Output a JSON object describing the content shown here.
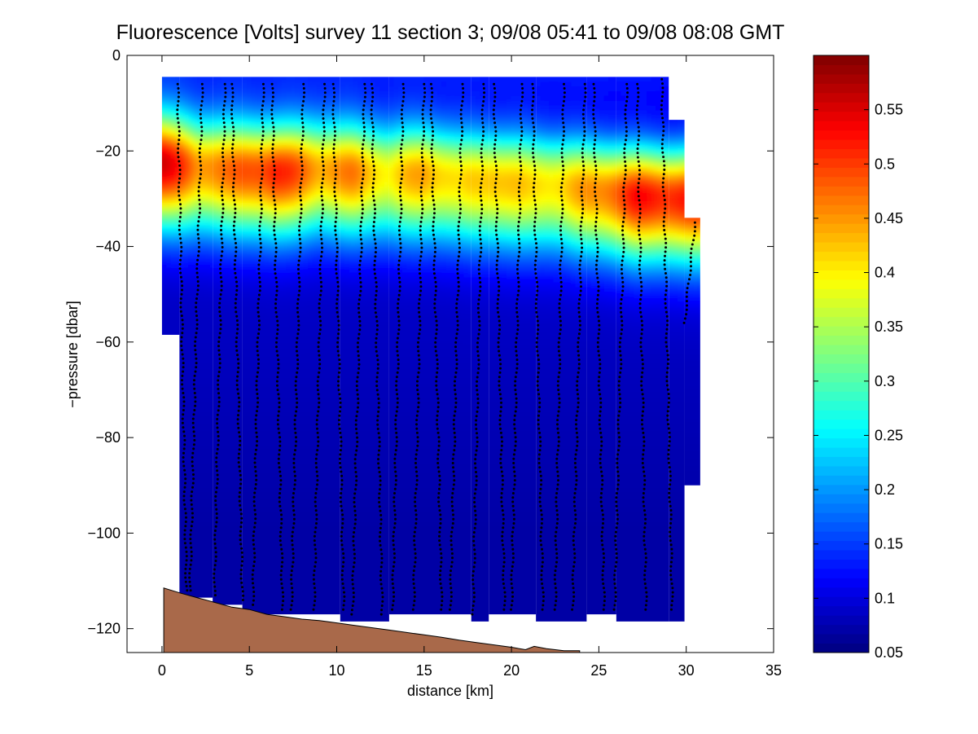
{
  "chart_data": {
    "type": "heatmap",
    "title": "Fluorescence [Volts] survey 11 section 3; 09/08 05:41 to 09/08 08:08 GMT",
    "xlabel": "distance [km]",
    "ylabel": "−pressure [dbar]",
    "xlim": [
      -2,
      35
    ],
    "ylim": [
      -125,
      0
    ],
    "x_ticks": [
      0,
      5,
      10,
      15,
      20,
      25,
      30,
      35
    ],
    "y_ticks": [
      0,
      -20,
      -40,
      -60,
      -80,
      -100,
      -120
    ],
    "x_tick_labels": [
      "0",
      "5",
      "10",
      "15",
      "20",
      "25",
      "30",
      "35"
    ],
    "y_tick_labels": [
      "0",
      "−20",
      "−40",
      "−60",
      "−80",
      "−100",
      "−120"
    ],
    "grid": false,
    "colormap": "jet",
    "colorbar": {
      "clim": [
        0.05,
        0.6
      ],
      "ticks": [
        0.05,
        0.1,
        0.15,
        0.2,
        0.25,
        0.3,
        0.35,
        0.4,
        0.45,
        0.5,
        0.55
      ],
      "tick_labels": [
        "0.05",
        "0.1",
        "0.15",
        "0.2",
        "0.25",
        "0.3",
        "0.35",
        "0.4",
        "0.45",
        "0.5",
        "0.55"
      ],
      "placement": "right"
    },
    "field": {
      "background_value": 0.085,
      "deep_value": 0.07,
      "surface_value": 0.16,
      "chlorophyll_max": [
        {
          "x": 0.0,
          "depth": -22.5,
          "value": 0.56
        },
        {
          "x": 2.0,
          "depth": -23.5,
          "value": 0.46
        },
        {
          "x": 4.0,
          "depth": -24.0,
          "value": 0.47
        },
        {
          "x": 6.5,
          "depth": -24.5,
          "value": 0.52
        },
        {
          "x": 9.0,
          "depth": -24.0,
          "value": 0.45
        },
        {
          "x": 11.0,
          "depth": -24.5,
          "value": 0.46
        },
        {
          "x": 13.0,
          "depth": -25.0,
          "value": 0.4
        },
        {
          "x": 15.0,
          "depth": -25.0,
          "value": 0.45
        },
        {
          "x": 17.0,
          "depth": -26.0,
          "value": 0.4
        },
        {
          "x": 19.0,
          "depth": -26.5,
          "value": 0.44
        },
        {
          "x": 21.0,
          "depth": -27.0,
          "value": 0.41
        },
        {
          "x": 23.0,
          "depth": -27.5,
          "value": 0.42
        },
        {
          "x": 25.0,
          "depth": -28.5,
          "value": 0.46
        },
        {
          "x": 27.0,
          "depth": -29.5,
          "value": 0.52
        },
        {
          "x": 29.5,
          "depth": -30.0,
          "value": 0.52
        }
      ],
      "coverage": [
        {
          "x0": 0.0,
          "x1": 1.0,
          "top": -4.5,
          "bottom": -58.5
        },
        {
          "x0": 1.0,
          "x1": 2.9,
          "top": -4.5,
          "bottom": -113.5
        },
        {
          "x0": 2.9,
          "x1": 4.6,
          "top": -4.5,
          "bottom": -115.0
        },
        {
          "x0": 4.6,
          "x1": 10.2,
          "top": -4.5,
          "bottom": -117.0
        },
        {
          "x0": 10.2,
          "x1": 13.0,
          "top": -4.5,
          "bottom": -118.5
        },
        {
          "x0": 13.0,
          "x1": 17.7,
          "top": -4.5,
          "bottom": -117.0
        },
        {
          "x0": 17.7,
          "x1": 18.7,
          "top": -4.5,
          "bottom": -118.5
        },
        {
          "x0": 18.7,
          "x1": 21.4,
          "top": -4.5,
          "bottom": -117.0
        },
        {
          "x0": 21.4,
          "x1": 24.3,
          "top": -4.5,
          "bottom": -118.5
        },
        {
          "x0": 24.3,
          "x1": 26.0,
          "top": -4.5,
          "bottom": -117.0
        },
        {
          "x0": 26.0,
          "x1": 29.0,
          "top": -4.5,
          "bottom": -118.5
        },
        {
          "x0": 29.0,
          "x1": 29.9,
          "top": -13.5,
          "bottom": -118.5
        },
        {
          "x0": 29.9,
          "x1": 30.8,
          "top": -34.0,
          "bottom": -90.0
        }
      ]
    },
    "casts": [
      {
        "x_top": 0.9,
        "x_bottom": 1.4,
        "top": -6,
        "bottom": -112
      },
      {
        "x_top": 2.3,
        "x_bottom": 1.6,
        "top": -6,
        "bottom": -112
      },
      {
        "x_top": 3.6,
        "x_bottom": 3.0,
        "top": -6,
        "bottom": -113
      },
      {
        "x_top": 4.0,
        "x_bottom": 4.6,
        "top": -6,
        "bottom": -114
      },
      {
        "x_top": 5.8,
        "x_bottom": 5.2,
        "top": -6,
        "bottom": -115
      },
      {
        "x_top": 6.3,
        "x_bottom": 6.9,
        "top": -6,
        "bottom": -116
      },
      {
        "x_top": 8.1,
        "x_bottom": 7.4,
        "top": -6,
        "bottom": -116
      },
      {
        "x_top": 9.3,
        "x_bottom": 8.7,
        "top": -6,
        "bottom": -116
      },
      {
        "x_top": 9.8,
        "x_bottom": 10.4,
        "top": -6,
        "bottom": -116
      },
      {
        "x_top": 11.6,
        "x_bottom": 10.9,
        "top": -6,
        "bottom": -117
      },
      {
        "x_top": 12.0,
        "x_bottom": 12.6,
        "top": -6,
        "bottom": -117
      },
      {
        "x_top": 13.8,
        "x_bottom": 13.2,
        "top": -6,
        "bottom": -116
      },
      {
        "x_top": 15.0,
        "x_bottom": 14.4,
        "top": -6,
        "bottom": -116
      },
      {
        "x_top": 15.4,
        "x_bottom": 16.0,
        "top": -6,
        "bottom": -116
      },
      {
        "x_top": 17.2,
        "x_bottom": 16.5,
        "top": -6,
        "bottom": -116
      },
      {
        "x_top": 18.4,
        "x_bottom": 17.8,
        "top": -6,
        "bottom": -117
      },
      {
        "x_top": 19.0,
        "x_bottom": 19.6,
        "top": -6,
        "bottom": -116
      },
      {
        "x_top": 20.6,
        "x_bottom": 20.0,
        "top": -6,
        "bottom": -116
      },
      {
        "x_top": 21.2,
        "x_bottom": 21.8,
        "top": -6,
        "bottom": -116
      },
      {
        "x_top": 23.0,
        "x_bottom": 22.5,
        "top": -6,
        "bottom": -116
      },
      {
        "x_top": 24.2,
        "x_bottom": 23.5,
        "top": -6,
        "bottom": -116
      },
      {
        "x_top": 24.7,
        "x_bottom": 25.3,
        "top": -6,
        "bottom": -116
      },
      {
        "x_top": 26.6,
        "x_bottom": 25.9,
        "top": -6,
        "bottom": -116
      },
      {
        "x_top": 27.2,
        "x_bottom": 27.7,
        "top": -6,
        "bottom": -116
      },
      {
        "x_top": 28.6,
        "x_bottom": 29.2,
        "top": -5,
        "bottom": -116
      },
      {
        "x_top": 30.5,
        "x_bottom": 29.9,
        "top": -35,
        "bottom": -56
      }
    ],
    "bathymetry": [
      [
        0.1,
        -111.5
      ],
      [
        1.0,
        -112.5
      ],
      [
        2.0,
        -113.5
      ],
      [
        3.0,
        -114.5
      ],
      [
        4.0,
        -115.5
      ],
      [
        5.0,
        -116.0
      ],
      [
        6.0,
        -117.0
      ],
      [
        7.0,
        -117.5
      ],
      [
        8.0,
        -118.0
      ],
      [
        9.0,
        -118.3
      ],
      [
        10.0,
        -118.8
      ],
      [
        11.0,
        -119.3
      ],
      [
        12.0,
        -119.8
      ],
      [
        13.0,
        -120.3
      ],
      [
        14.0,
        -120.8
      ],
      [
        15.0,
        -121.3
      ],
      [
        16.0,
        -121.8
      ],
      [
        17.0,
        -122.4
      ],
      [
        18.0,
        -122.9
      ],
      [
        19.0,
        -123.4
      ],
      [
        20.0,
        -123.9
      ],
      [
        20.8,
        -124.4
      ],
      [
        21.3,
        -123.7
      ],
      [
        22.0,
        -124.2
      ],
      [
        23.0,
        -124.6
      ],
      [
        23.9,
        -124.6
      ]
    ],
    "bathymetry_color": "#a9694a",
    "cast_marker_color": "#000000"
  }
}
